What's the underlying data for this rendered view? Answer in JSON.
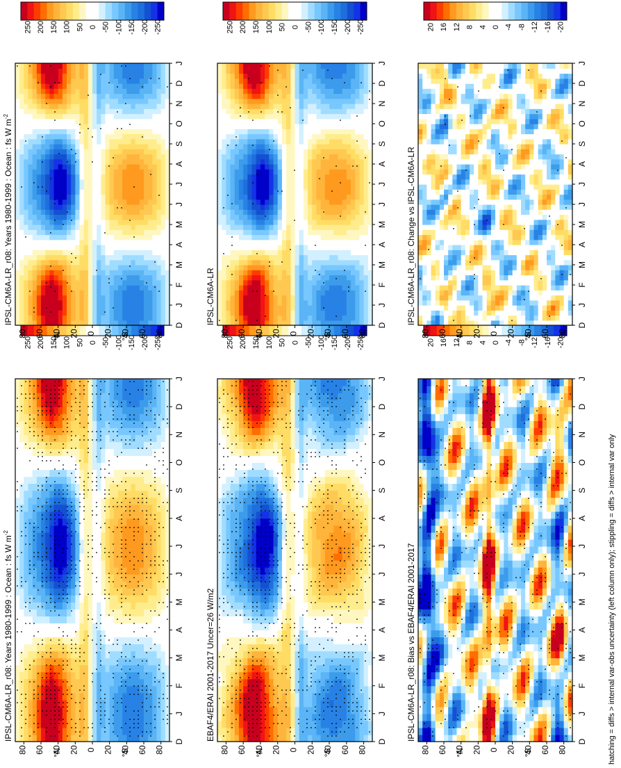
{
  "chart_data": {
    "type": "heatmap",
    "footnote": "hatching = diffs > internal var-obs uncertainty (left column only); stippling = diffs > internal var only",
    "time_ticks": [
      "D",
      "J",
      "F",
      "M",
      "A",
      "M",
      "J",
      "J",
      "A",
      "S",
      "O",
      "N",
      "D",
      "J"
    ],
    "lat_ticks": [
      "80",
      "60",
      "40",
      "20",
      "0",
      "20",
      "40",
      "60",
      "80"
    ],
    "lat_hemisphere_labels": [
      "°N",
      "°S"
    ],
    "colorbars": {
      "main": {
        "labels": [
          "250",
          "200",
          "150",
          "100",
          "50",
          "0",
          "-50",
          "-100",
          "-150",
          "-200",
          "-250"
        ],
        "colors": [
          "#c8001e",
          "#f01414",
          "#ff3c00",
          "#ff6e00",
          "#ff9a1e",
          "#ffb43c",
          "#ffc850",
          "#ffdc64",
          "#ffec8c",
          "#fff7c0",
          "#ffffff",
          "#ffffff",
          "#d2f0ff",
          "#a0dcff",
          "#78c8ff",
          "#5ab4f5",
          "#3c9ceb",
          "#2882e6",
          "#1e6edc",
          "#1450d2",
          "#1432e6",
          "#0000c8"
        ]
      },
      "diff": {
        "labels": [
          "20",
          "16",
          "12",
          "8",
          "4",
          "0",
          "-4",
          "-8",
          "-12",
          "-16",
          "-20"
        ],
        "colors": [
          "#c8001e",
          "#f01414",
          "#ff3c00",
          "#ff6e00",
          "#ff9a1e",
          "#ffb43c",
          "#ffc850",
          "#ffdc64",
          "#ffec8c",
          "#fff7c0",
          "#ffffff",
          "#ffffff",
          "#d2f0ff",
          "#a0dcff",
          "#78c8ff",
          "#5ab4f5",
          "#3c9ceb",
          "#2882e6",
          "#1e6edc",
          "#1450d2",
          "#1432e6",
          "#0000c8"
        ]
      }
    },
    "panels": [
      {
        "id": "p1",
        "title": "IPSL-CM6A-LR_r08: Years 1980-1999 : Ocean : fs W m",
        "title_sup": "-2",
        "kind": "model",
        "stipple": "dense",
        "colorbar": "main"
      },
      {
        "id": "p2",
        "title": "IPSL-CM6A-LR_r08: Years 1980-1999 : Ocean : fs W m",
        "title_sup": "-2",
        "kind": "model",
        "stipple": "sparse",
        "colorbar": "main"
      },
      {
        "id": "p3",
        "title": "EBAF4/ERAI 2001-2017 Uncer=26 W/m2",
        "title_sup": "",
        "kind": "obs",
        "stipple": "dense",
        "colorbar": "main"
      },
      {
        "id": "p4",
        "title": "IPSL-CM6A-LR",
        "title_sup": "",
        "kind": "model2",
        "stipple": "sparse",
        "colorbar": "main"
      },
      {
        "id": "p5",
        "title": "IPSL-CM6A-LR_r08: Bias vs EBAF4/ERAI 2001-2017",
        "title_sup": "",
        "kind": "bias",
        "stipple": "medium",
        "colorbar": "diff"
      },
      {
        "id": "p6",
        "title": "IPSL-CM6A-LR_r08: Change vs IPSL-CM6A-LR",
        "title_sup": "",
        "kind": "change",
        "stipple": "sparse",
        "colorbar": "diff"
      }
    ]
  }
}
